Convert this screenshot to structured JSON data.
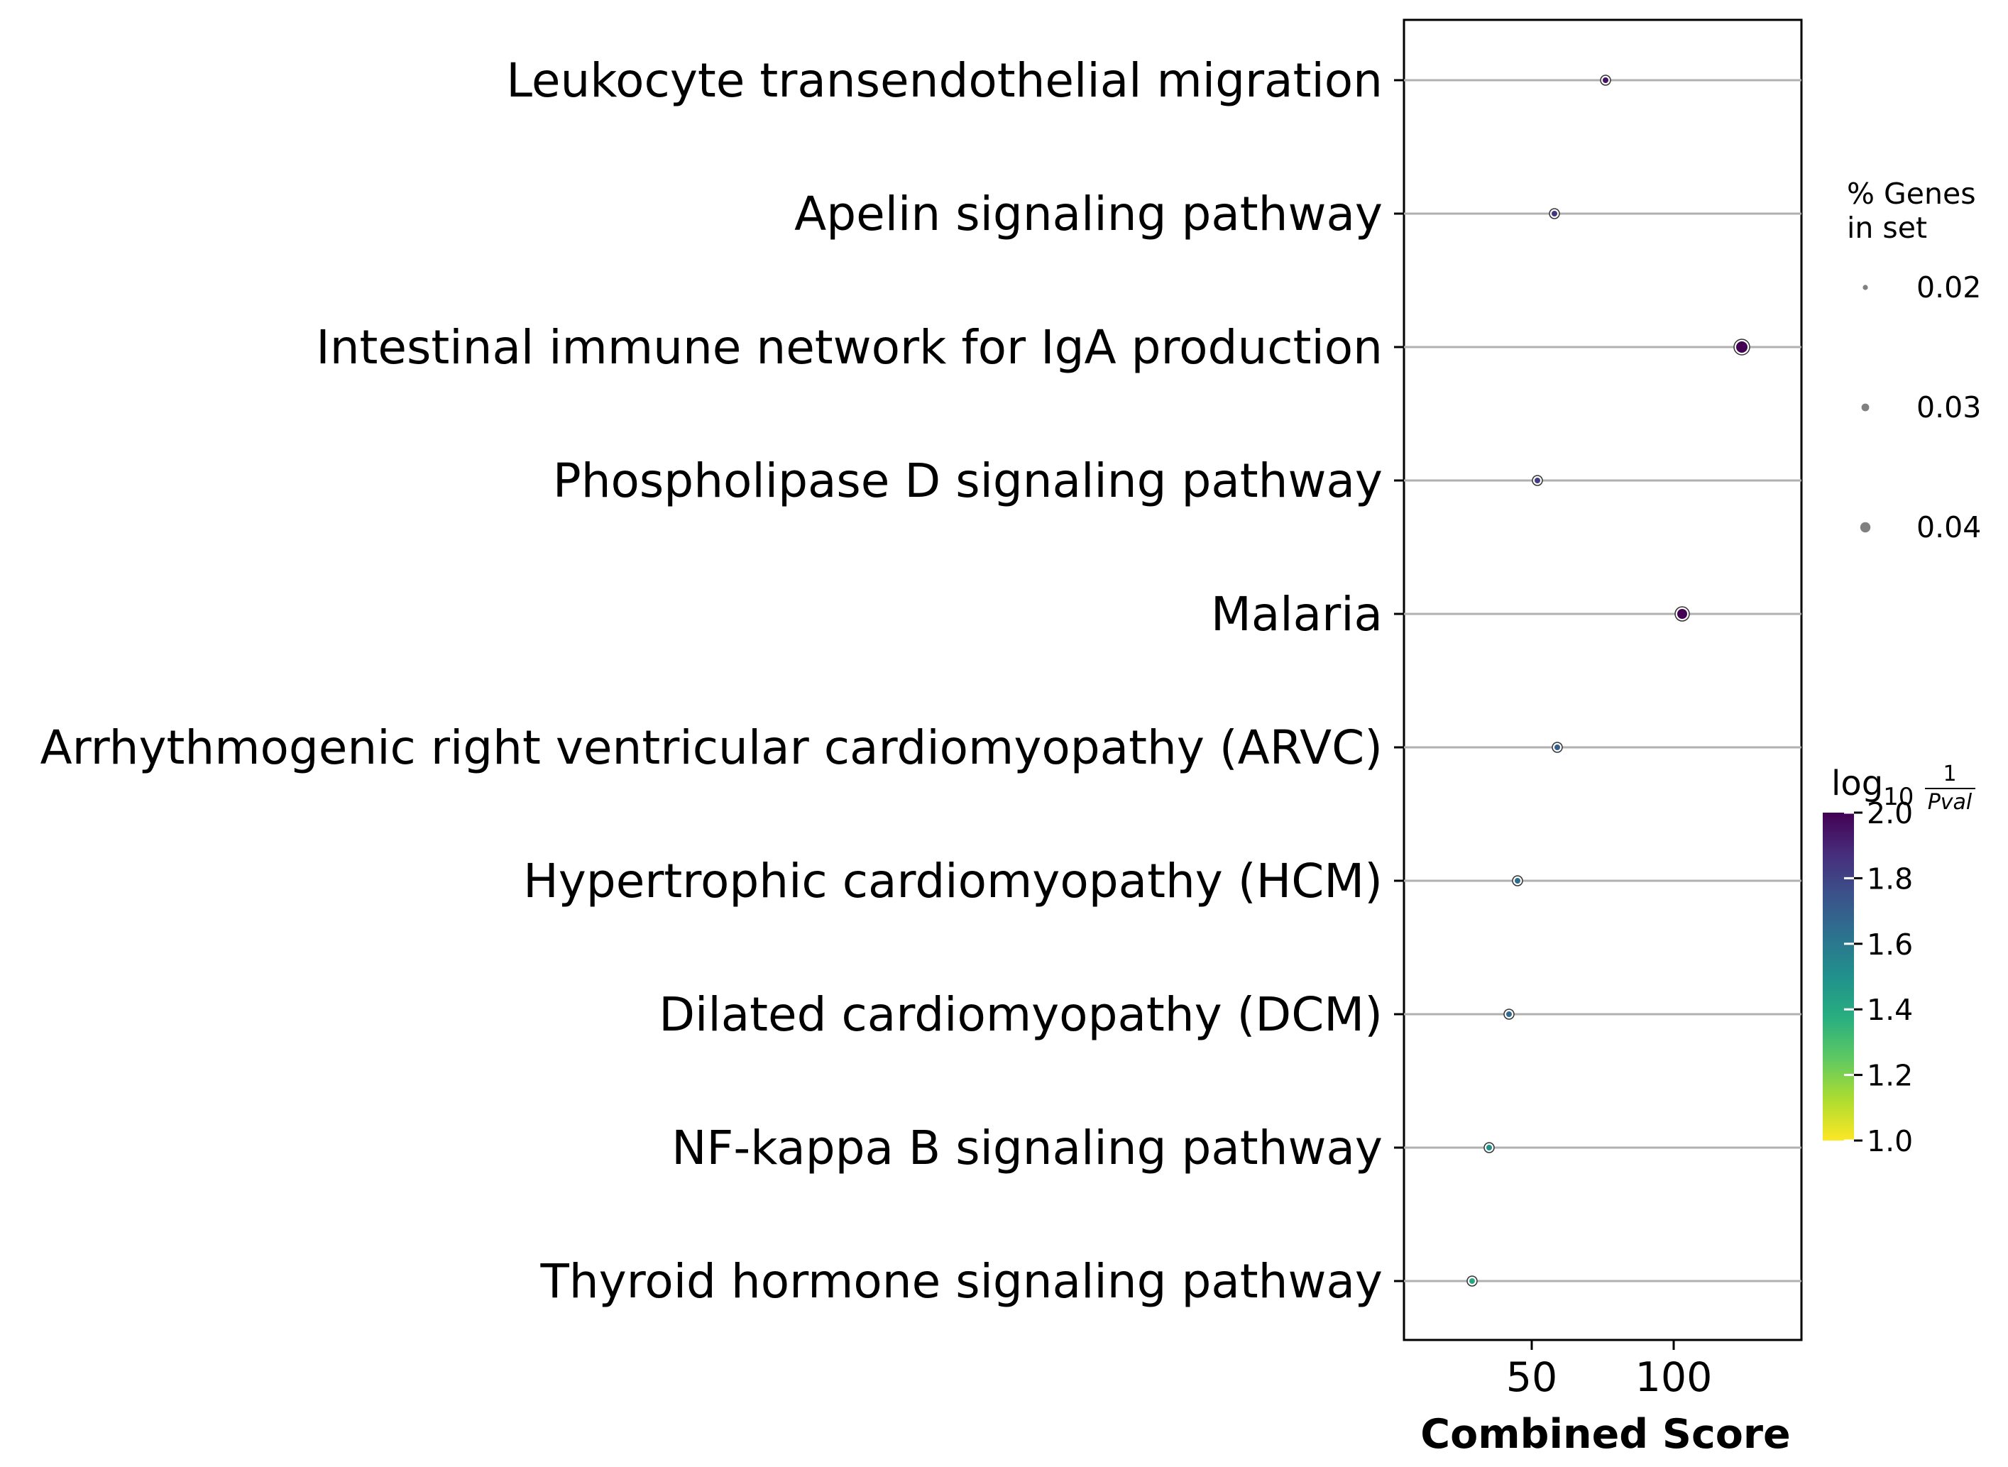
{
  "chart_data": {
    "type": "scatter",
    "xlabel": "Combined Score",
    "xlim": [
      5,
      145
    ],
    "xticks": [
      50,
      100
    ],
    "categories": [
      "Leukocyte transendothelial migration",
      "Apelin signaling pathway",
      "Intestinal immune network for IgA production",
      "Phospholipase D signaling pathway",
      "Malaria",
      "Arrhythmogenic right ventricular cardiomyopathy (ARVC)",
      "Hypertrophic cardiomyopathy (HCM)",
      "Dilated cardiomyopathy (DCM)",
      "NF-kappa B signaling pathway",
      "Thyroid hormone signaling pathway"
    ],
    "points": [
      {
        "category": "Leukocyte transendothelial migration",
        "combined_score": 76,
        "neg_log10_pval": 1.95,
        "pct_genes": 0.02
      },
      {
        "category": "Apelin signaling pathway",
        "combined_score": 58,
        "neg_log10_pval": 1.85,
        "pct_genes": 0.02
      },
      {
        "category": "Intestinal immune network for IgA production",
        "combined_score": 124,
        "neg_log10_pval": 2.0,
        "pct_genes": 0.04
      },
      {
        "category": "Phospholipase D signaling pathway",
        "combined_score": 52,
        "neg_log10_pval": 1.82,
        "pct_genes": 0.02
      },
      {
        "category": "Malaria",
        "combined_score": 103,
        "neg_log10_pval": 2.0,
        "pct_genes": 0.035
      },
      {
        "category": "Arrhythmogenic right ventricular cardiomyopathy (ARVC)",
        "combined_score": 59,
        "neg_log10_pval": 1.7,
        "pct_genes": 0.02
      },
      {
        "category": "Hypertrophic cardiomyopathy (HCM)",
        "combined_score": 45,
        "neg_log10_pval": 1.65,
        "pct_genes": 0.02
      },
      {
        "category": "Dilated cardiomyopathy (DCM)",
        "combined_score": 42,
        "neg_log10_pval": 1.65,
        "pct_genes": 0.02
      },
      {
        "category": "NF-kappa B signaling pathway",
        "combined_score": 35,
        "neg_log10_pval": 1.5,
        "pct_genes": 0.02
      },
      {
        "category": "Thyroid hormone signaling pathway",
        "combined_score": 29,
        "neg_log10_pval": 1.4,
        "pct_genes": 0.02
      }
    ],
    "size_legend": {
      "title_lines": [
        "% Genes",
        "in set"
      ],
      "values": [
        0.02,
        0.03,
        0.04
      ]
    },
    "colorbar": {
      "title": "log10 1/Pval",
      "title_main": "log",
      "title_sub": "10",
      "title_num": "1",
      "title_den": "Pval",
      "range": [
        1.0,
        2.0
      ],
      "ticks": [
        "2.0",
        "1.8",
        "1.6",
        "1.4",
        "1.2",
        "1.0"
      ],
      "colors": [
        "#fde725",
        "#addc30",
        "#5ec962",
        "#28ae80",
        "#21918c",
        "#2c728e",
        "#3b528b",
        "#472d7b",
        "#440154"
      ]
    },
    "grid": "horizontal",
    "legend_position": "right"
  }
}
